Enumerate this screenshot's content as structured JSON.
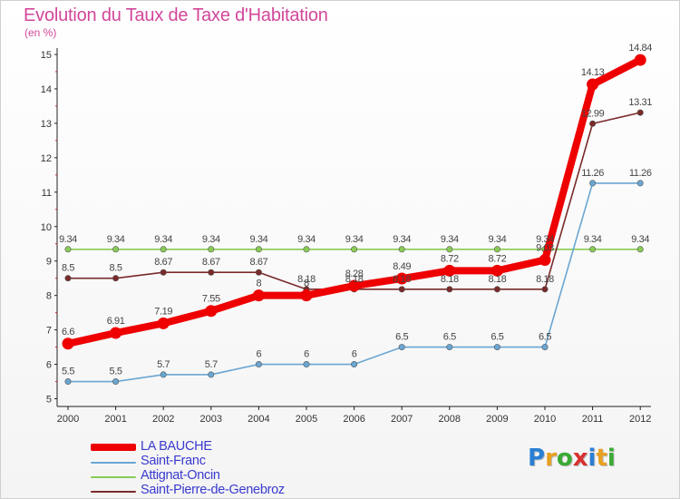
{
  "header": {
    "title": "Evolution du Taux de Taxe d'Habitation",
    "subtitle": "(en %)"
  },
  "logo": {
    "letters": [
      "P",
      "r",
      "o",
      "x",
      "i",
      "t",
      "i"
    ],
    "colors": [
      "#2a7fd4",
      "#e8a020",
      "#3aaa35",
      "#d93030",
      "#2a7fd4",
      "#e8a020",
      "#3aaa35"
    ]
  },
  "chart_data": {
    "type": "line",
    "categories": [
      "2000",
      "2001",
      "2002",
      "2003",
      "2004",
      "2005",
      "2006",
      "2007",
      "2008",
      "2009",
      "2010",
      "2011",
      "2012"
    ],
    "y_ticks": [
      "5",
      "6",
      "7",
      "8",
      "9",
      "10",
      "11",
      "12",
      "13",
      "14",
      "15"
    ],
    "ylim": [
      5,
      15
    ],
    "grid": false,
    "legend_position": "bottom-left",
    "series": [
      {
        "name": "LA BAUCHE",
        "color": "#ee0000",
        "values": [
          6.6,
          6.91,
          7.19,
          7.55,
          8,
          8,
          8.28,
          8.49,
          8.72,
          8.72,
          9.03,
          14.13,
          14.84
        ],
        "labels": [
          "6.6",
          "6.91",
          "7.19",
          "7.55",
          "8",
          "8",
          "8.28",
          "8.49",
          "8.72",
          "8.72",
          "9.03",
          "14.13",
          "14.84"
        ]
      },
      {
        "name": "Saint-Franc",
        "color": "#6aa6d2",
        "values": [
          5.5,
          5.5,
          5.7,
          5.7,
          6,
          6,
          6,
          6.5,
          6.5,
          6.5,
          6.5,
          11.26,
          11.26
        ],
        "labels": [
          "5.5",
          "5.5",
          "5.7",
          "5.7",
          "6",
          "6",
          "6",
          "6.5",
          "6.5",
          "6.5",
          "6.5",
          "11.26",
          "11.26"
        ]
      },
      {
        "name": "Attignat-Oncin",
        "color": "#88cc55",
        "values": [
          9.34,
          9.34,
          9.34,
          9.34,
          9.34,
          9.34,
          9.34,
          9.34,
          9.34,
          9.34,
          9.34,
          9.34,
          9.34
        ],
        "labels": [
          "9.34",
          "9.34",
          "9.34",
          "9.34",
          "9.34",
          "9.34",
          "9.34",
          "9.34",
          "9.34",
          "9.34",
          "9.34",
          "9.34",
          "9.34"
        ]
      },
      {
        "name": "Saint-Pierre-de-Genebroz",
        "color": "#7a2a2a",
        "values": [
          8.5,
          8.5,
          8.67,
          8.67,
          8.67,
          8.18,
          8.18,
          8.18,
          8.18,
          8.18,
          8.18,
          12.99,
          13.31
        ],
        "labels": [
          "8.5",
          "8.5",
          "8.67",
          "8.67",
          "8.67",
          "8.18",
          "8.18",
          "8.18",
          "8.18",
          "8.18",
          "8.18",
          "12.99",
          "13.31"
        ]
      }
    ]
  }
}
